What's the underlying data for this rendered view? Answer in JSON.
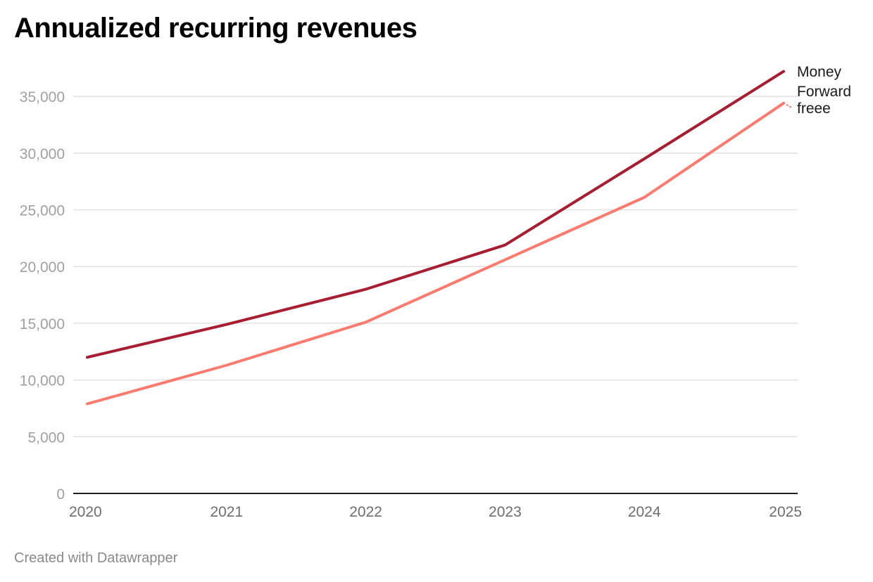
{
  "chart_data": {
    "type": "line",
    "title": "Annualized recurring revenues",
    "xlabel": "",
    "ylabel": "",
    "x": [
      "2020",
      "2021",
      "2022",
      "2023",
      "2024",
      "2025"
    ],
    "ylim": [
      0,
      37500
    ],
    "yticks": [
      0,
      5000,
      10000,
      15000,
      20000,
      25000,
      30000,
      35000
    ],
    "ytick_labels": [
      "0",
      "5,000",
      "10,000",
      "15,000",
      "20,000",
      "25,000",
      "30,000",
      "35,000"
    ],
    "grid": true,
    "legend": "direct-labels-right",
    "series": [
      {
        "name": "Money Forward",
        "label_lines": [
          "Money",
          "Forward"
        ],
        "color": "#a81d32",
        "values": [
          12000,
          14900,
          18000,
          21900,
          29500,
          37200
        ]
      },
      {
        "name": "freee",
        "label_lines": [
          "freee"
        ],
        "color": "#fc7a6e",
        "values": [
          7900,
          11300,
          15100,
          20600,
          26100,
          34400
        ]
      }
    ],
    "source_note": "Created with Datawrapper"
  }
}
